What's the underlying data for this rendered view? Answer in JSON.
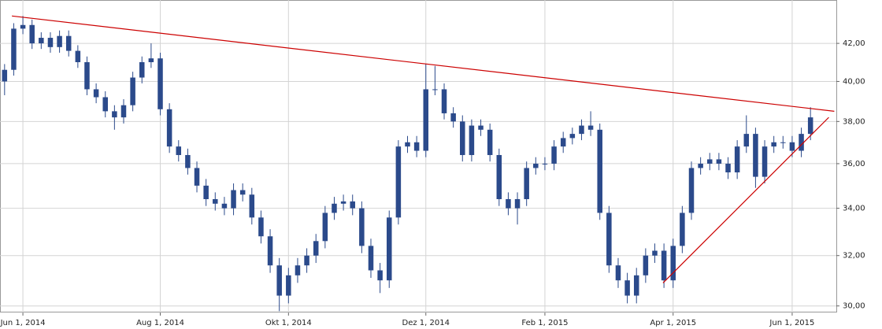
{
  "chart_data": {
    "type": "candlestick",
    "color": "#2b4a8b",
    "log": true,
    "grid": true,
    "categories": [
      null,
      null,
      "Jun 1, 2014",
      null,
      null,
      null,
      null,
      null,
      null,
      null,
      null,
      null,
      null,
      null,
      null,
      null,
      null,
      "Aug 1, 2014",
      null,
      null,
      null,
      null,
      null,
      null,
      null,
      null,
      null,
      null,
      null,
      null,
      null,
      "Okt 1, 2014",
      null,
      null,
      null,
      null,
      null,
      null,
      null,
      null,
      null,
      null,
      null,
      null,
      null,
      null,
      "Dez 1, 2014",
      null,
      null,
      null,
      null,
      null,
      null,
      null,
      null,
      null,
      null,
      null,
      null,
      "Feb 1, 2015",
      null,
      null,
      null,
      null,
      null,
      null,
      null,
      null,
      null,
      null,
      null,
      null,
      null,
      "Apr 1, 2015",
      null,
      null,
      null,
      null,
      null,
      null,
      null,
      null,
      null,
      null,
      null,
      null,
      "Jun 1, 2015",
      null,
      null
    ],
    "open": [
      40.0,
      40.6,
      42.8,
      43.0,
      42.0,
      42.3,
      41.8,
      42.4,
      41.6,
      41.0,
      39.6,
      39.2,
      38.5,
      38.2,
      38.8,
      40.2,
      41.0,
      41.2,
      38.6,
      36.8,
      36.4,
      35.8,
      35.0,
      34.4,
      34.2,
      34.0,
      34.8,
      34.6,
      33.6,
      32.8,
      31.6,
      30.4,
      31.2,
      31.6,
      32.0,
      32.6,
      33.8,
      34.2,
      34.3,
      34.0,
      32.4,
      31.4,
      31.0,
      33.6,
      36.8,
      37.0,
      36.6,
      39.6,
      39.6,
      38.4,
      38.0,
      36.4,
      37.8,
      37.6,
      36.4,
      34.4,
      34.0,
      34.4,
      35.8,
      36.0,
      36.0,
      36.8,
      37.2,
      37.4,
      37.8,
      37.6,
      33.8,
      31.6,
      31.0,
      30.4,
      31.2,
      32.0,
      32.2,
      31.0,
      32.4,
      33.8,
      35.8,
      36.0,
      36.2,
      36.0,
      35.6,
      36.8,
      37.4,
      35.4,
      36.8,
      37.0,
      37.0,
      36.6,
      37.4
    ],
    "high": [
      40.9,
      43.1,
      43.5,
      43.3,
      42.6,
      42.6,
      42.7,
      42.7,
      41.9,
      41.3,
      39.9,
      39.5,
      38.8,
      39.1,
      40.5,
      41.3,
      42.0,
      41.5,
      38.9,
      37.1,
      36.7,
      36.1,
      35.3,
      34.7,
      34.5,
      35.1,
      35.1,
      34.9,
      33.9,
      33.1,
      31.9,
      31.5,
      31.9,
      32.3,
      32.9,
      34.1,
      34.5,
      34.6,
      34.6,
      34.3,
      32.7,
      31.7,
      33.9,
      37.1,
      37.3,
      37.3,
      40.9,
      40.8,
      39.9,
      38.7,
      38.3,
      38.1,
      38.1,
      37.9,
      36.7,
      34.7,
      34.7,
      36.1,
      36.3,
      36.3,
      37.1,
      37.5,
      37.7,
      38.1,
      38.5,
      37.9,
      34.1,
      31.9,
      31.3,
      31.5,
      32.3,
      32.5,
      32.5,
      32.7,
      34.1,
      36.1,
      36.3,
      36.5,
      36.5,
      36.3,
      37.1,
      38.3,
      37.7,
      37.1,
      37.3,
      37.3,
      37.3,
      37.7,
      38.7
    ],
    "low": [
      39.3,
      40.3,
      42.5,
      41.7,
      41.7,
      41.5,
      41.5,
      41.3,
      40.7,
      39.3,
      38.9,
      38.2,
      37.6,
      37.9,
      38.5,
      39.9,
      40.7,
      38.3,
      36.5,
      36.1,
      35.5,
      34.7,
      34.1,
      33.9,
      33.7,
      33.7,
      34.3,
      33.3,
      32.5,
      31.3,
      29.8,
      30.1,
      30.9,
      31.3,
      31.7,
      32.3,
      33.5,
      33.9,
      33.7,
      32.1,
      31.1,
      30.5,
      30.7,
      33.3,
      36.5,
      36.3,
      36.3,
      39.3,
      38.1,
      37.7,
      36.1,
      36.1,
      37.3,
      36.1,
      34.1,
      33.7,
      33.3,
      34.1,
      35.5,
      35.7,
      35.7,
      36.5,
      36.9,
      37.1,
      37.3,
      33.5,
      31.3,
      30.7,
      30.1,
      30.1,
      30.9,
      31.7,
      30.7,
      30.7,
      32.1,
      33.5,
      35.5,
      35.7,
      35.7,
      35.3,
      35.3,
      36.5,
      34.9,
      35.1,
      36.5,
      36.7,
      36.3,
      36.3,
      37.1
    ],
    "close": [
      40.6,
      42.8,
      43.0,
      42.0,
      42.3,
      41.8,
      42.4,
      41.6,
      41.0,
      39.6,
      39.2,
      38.5,
      38.2,
      38.8,
      40.2,
      41.0,
      41.2,
      38.6,
      36.8,
      36.4,
      35.8,
      35.0,
      34.4,
      34.2,
      34.0,
      34.8,
      34.6,
      33.6,
      32.8,
      31.6,
      30.4,
      31.2,
      31.6,
      32.0,
      32.6,
      33.8,
      34.2,
      34.3,
      34.0,
      32.4,
      31.4,
      31.0,
      33.6,
      36.8,
      37.0,
      36.6,
      39.6,
      39.6,
      38.4,
      38.0,
      36.4,
      37.8,
      37.6,
      36.4,
      34.4,
      34.0,
      34.4,
      35.8,
      36.0,
      36.0,
      36.8,
      37.2,
      37.4,
      37.8,
      37.6,
      33.8,
      31.6,
      31.0,
      30.4,
      31.2,
      32.0,
      32.2,
      31.0,
      32.4,
      33.8,
      35.8,
      36.0,
      36.2,
      36.0,
      35.6,
      36.8,
      37.4,
      35.4,
      36.8,
      37.0,
      37.0,
      36.6,
      37.4,
      38.2
    ],
    "ylim": [
      29.75,
      44.4
    ],
    "yticks": [
      {
        "value": 30,
        "label": "30,00"
      },
      {
        "value": 32,
        "label": "32,00"
      },
      {
        "value": 34,
        "label": "34,00"
      },
      {
        "value": 36,
        "label": "36,00"
      },
      {
        "value": 38,
        "label": "38,00"
      },
      {
        "value": 40,
        "label": "40,00"
      },
      {
        "value": 42,
        "label": "42,00"
      }
    ],
    "trend_lines": [
      {
        "color": "#cc0000",
        "x": [
          0.8,
          90.6
        ],
        "y": [
          43.5,
          38.5
        ]
      },
      {
        "color": "#cc0000",
        "x": [
          71.9,
          90.0
        ],
        "y": [
          30.9,
          38.2
        ]
      }
    ]
  }
}
